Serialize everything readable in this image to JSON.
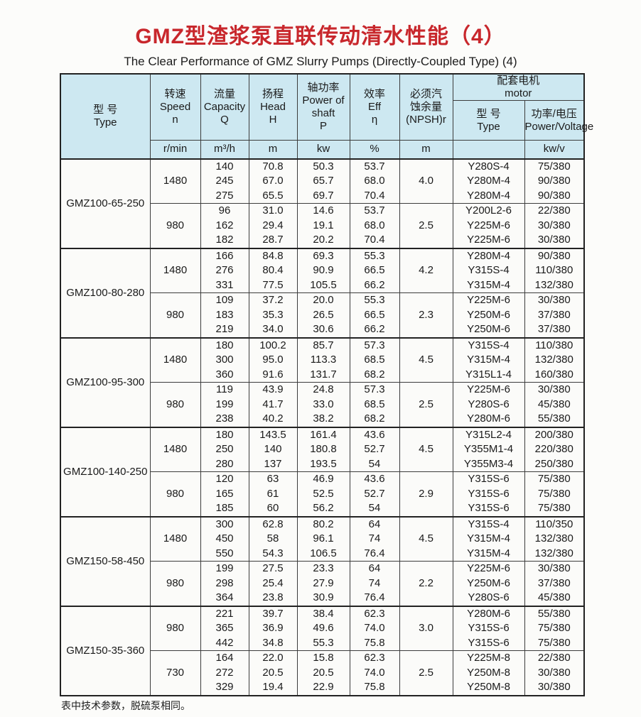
{
  "page": {
    "title_zh": "GMZ型渣浆泵直联传动清水性能（4）",
    "subtitle_en": "The Clear Performance of GMZ Slurry Pumps (Directly-Coupled Type) (4)",
    "footnote": "表中技术参数，脱硫泵相同。",
    "accent_red": "#c8272c",
    "header_bg": "#cde8f1"
  },
  "table": {
    "headers": {
      "type": {
        "zh": "型 号",
        "en": "Type"
      },
      "speed": {
        "zh": "转速",
        "en": "Speed",
        "sym": "n",
        "unit": "r/min"
      },
      "capacity": {
        "zh": "流量",
        "en": "Capacity",
        "sym": "Q",
        "unit": "m³/h"
      },
      "head": {
        "zh": "扬程",
        "en": "Head",
        "sym": "H",
        "unit": "m"
      },
      "shaft_power": {
        "zh": "轴功率",
        "en1": "Power of",
        "en2": "shaft",
        "sym": "P",
        "unit": "kw"
      },
      "eff": {
        "zh": "效率",
        "en": "Eff",
        "sym": "η",
        "unit": "%"
      },
      "npsh": {
        "zh1": "必须汽",
        "zh2": "蚀余量",
        "en": "(NPSH)r",
        "unit": "m"
      },
      "motor_group": {
        "zh": "配套电机",
        "en": "motor"
      },
      "motor_type": {
        "zh": "型 号",
        "en": "Type",
        "unit": ""
      },
      "motor_power": {
        "zh": "功率/电压",
        "en": "Power/Voltage",
        "unit": "kw/v"
      }
    },
    "blocks": [
      {
        "model": "GMZ100-65-250",
        "subrows": [
          {
            "speed": "1480",
            "capacity": [
              "140",
              "245",
              "275"
            ],
            "head": [
              "70.8",
              "67.0",
              "65.5"
            ],
            "power": [
              "50.3",
              "65.7",
              "69.7"
            ],
            "eff": [
              "53.7",
              "68.0",
              "70.4"
            ],
            "npsh": "4.0",
            "motor": [
              "Y280S-4",
              "Y280M-4",
              "Y280M-4"
            ],
            "power_voltage": [
              "75/380",
              "90/380",
              "90/380"
            ]
          },
          {
            "speed": "980",
            "capacity": [
              "96",
              "162",
              "182"
            ],
            "head": [
              "31.0",
              "29.4",
              "28.7"
            ],
            "power": [
              "14.6",
              "19.1",
              "20.2"
            ],
            "eff": [
              "53.7",
              "68.0",
              "70.4"
            ],
            "npsh": "2.5",
            "motor": [
              "Y200L2-6",
              "Y225M-6",
              "Y225M-6"
            ],
            "power_voltage": [
              "22/380",
              "30/380",
              "30/380"
            ]
          }
        ]
      },
      {
        "model": "GMZ100-80-280",
        "subrows": [
          {
            "speed": "1480",
            "capacity": [
              "166",
              "276",
              "331"
            ],
            "head": [
              "84.8",
              "80.4",
              "77.5"
            ],
            "power": [
              "69.3",
              "90.9",
              "105.5"
            ],
            "eff": [
              "55.3",
              "66.5",
              "66.2"
            ],
            "npsh": "4.2",
            "motor": [
              "Y280M-4",
              "Y315S-4",
              "Y315M-4"
            ],
            "power_voltage": [
              "90/380",
              "110/380",
              "132/380"
            ]
          },
          {
            "speed": "980",
            "capacity": [
              "109",
              "183",
              "219"
            ],
            "head": [
              "37.2",
              "35.3",
              "34.0"
            ],
            "power": [
              "20.0",
              "26.5",
              "30.6"
            ],
            "eff": [
              "55.3",
              "66.5",
              "66.2"
            ],
            "npsh": "2.3",
            "motor": [
              "Y225M-6",
              "Y250M-6",
              "Y250M-6"
            ],
            "power_voltage": [
              "30/380",
              "37/380",
              "37/380"
            ]
          }
        ]
      },
      {
        "model": "GMZ100-95-300",
        "subrows": [
          {
            "speed": "1480",
            "capacity": [
              "180",
              "300",
              "360"
            ],
            "head": [
              "100.2",
              "95.0",
              "91.6"
            ],
            "power": [
              "85.7",
              "113.3",
              "131.7"
            ],
            "eff": [
              "57.3",
              "68.5",
              "68.2"
            ],
            "npsh": "4.5",
            "motor": [
              "Y315S-4",
              "Y315M-4",
              "Y315L1-4"
            ],
            "power_voltage": [
              "110/380",
              "132/380",
              "160/380"
            ]
          },
          {
            "speed": "980",
            "capacity": [
              "119",
              "199",
              "238"
            ],
            "head": [
              "43.9",
              "41.7",
              "40.2"
            ],
            "power": [
              "24.8",
              "33.0",
              "38.2"
            ],
            "eff": [
              "57.3",
              "68.5",
              "68.2"
            ],
            "npsh": "2.5",
            "motor": [
              "Y225M-6",
              "Y280S-6",
              "Y280M-6"
            ],
            "power_voltage": [
              "30/380",
              "45/380",
              "55/380"
            ]
          }
        ]
      },
      {
        "model": "GMZ100-140-250",
        "subrows": [
          {
            "speed": "1480",
            "capacity": [
              "180",
              "250",
              "280"
            ],
            "head": [
              "143.5",
              "140",
              "137"
            ],
            "power": [
              "161.4",
              "180.8",
              "193.5"
            ],
            "eff": [
              "43.6",
              "52.7",
              "54"
            ],
            "npsh": "4.5",
            "motor": [
              "Y315L2-4",
              "Y355M1-4",
              "Y355M3-4"
            ],
            "power_voltage": [
              "200/380",
              "220/380",
              "250/380"
            ]
          },
          {
            "speed": "980",
            "capacity": [
              "120",
              "165",
              "185"
            ],
            "head": [
              "63",
              "61",
              "60"
            ],
            "power": [
              "46.9",
              "52.5",
              "56.2"
            ],
            "eff": [
              "43.6",
              "52.7",
              "54"
            ],
            "npsh": "2.9",
            "motor": [
              "Y315S-6",
              "Y315S-6",
              "Y315S-6"
            ],
            "power_voltage": [
              "75/380",
              "75/380",
              "75/380"
            ]
          }
        ]
      },
      {
        "model": "GMZ150-58-450",
        "subrows": [
          {
            "speed": "1480",
            "capacity": [
              "300",
              "450",
              "550"
            ],
            "head": [
              "62.8",
              "58",
              "54.3"
            ],
            "power": [
              "80.2",
              "96.1",
              "106.5"
            ],
            "eff": [
              "64",
              "74",
              "76.4"
            ],
            "npsh": "4.5",
            "motor": [
              "Y315S-4",
              "Y315M-4",
              "Y315M-4"
            ],
            "power_voltage": [
              "110/350",
              "132/380",
              "132/380"
            ]
          },
          {
            "speed": "980",
            "capacity": [
              "199",
              "298",
              "364"
            ],
            "head": [
              "27.5",
              "25.4",
              "23.8"
            ],
            "power": [
              "23.3",
              "27.9",
              "30.9"
            ],
            "eff": [
              "64",
              "74",
              "76.4"
            ],
            "npsh": "2.2",
            "motor": [
              "Y225M-6",
              "Y250M-6",
              "Y280S-6"
            ],
            "power_voltage": [
              "30/380",
              "37/380",
              "45/380"
            ]
          }
        ]
      },
      {
        "model": "GMZ150-35-360",
        "subrows": [
          {
            "speed": "980",
            "capacity": [
              "221",
              "365",
              "442"
            ],
            "head": [
              "39.7",
              "36.9",
              "34.8"
            ],
            "power": [
              "38.4",
              "49.6",
              "55.3"
            ],
            "eff": [
              "62.3",
              "74.0",
              "75.8"
            ],
            "npsh": "3.0",
            "motor": [
              "Y280M-6",
              "Y315S-6",
              "Y315S-6"
            ],
            "power_voltage": [
              "55/380",
              "75/380",
              "75/380"
            ]
          },
          {
            "speed": "730",
            "capacity": [
              "164",
              "272",
              "329"
            ],
            "head": [
              "22.0",
              "20.5",
              "19.4"
            ],
            "power": [
              "15.8",
              "20.5",
              "22.9"
            ],
            "eff": [
              "62.3",
              "74.0",
              "75.8"
            ],
            "npsh": "2.5",
            "motor": [
              "Y225M-8",
              "Y250M-8",
              "Y250M-8"
            ],
            "power_voltage": [
              "22/380",
              "30/380",
              "30/380"
            ]
          }
        ]
      }
    ]
  }
}
